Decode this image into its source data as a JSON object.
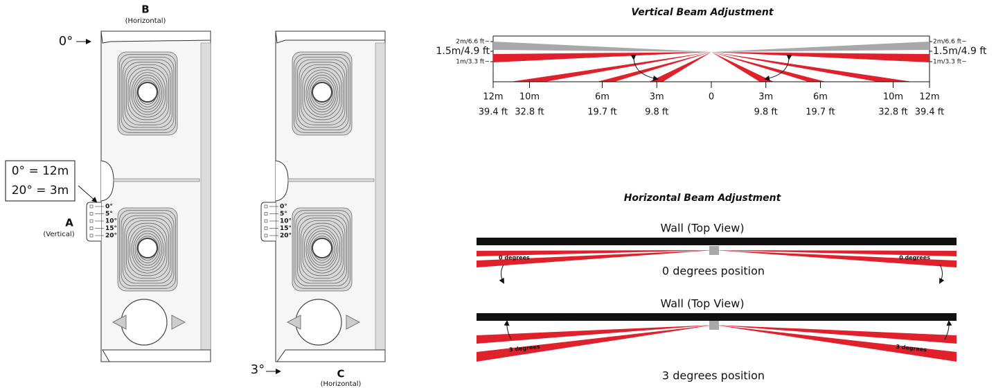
{
  "device_a": {
    "label": "B",
    "label_sub": "(Horizontal)",
    "angle": "0°",
    "callout": [
      "0° = 12m",
      "20° = 3m"
    ],
    "side_label": "A",
    "side_label_sub": "(Vertical)",
    "scale": [
      "0°",
      "5°",
      "10°",
      "15°",
      "20°"
    ]
  },
  "device_c": {
    "angle": "3°",
    "label": "C",
    "label_sub": "(Horizontal)",
    "scale": [
      "0°",
      "5°",
      "10°",
      "15°",
      "20°"
    ]
  },
  "vertical": {
    "title": "Vertical Beam Adjustment",
    "left_heights": [
      "2m/6.6 ft~",
      "1.5m/4.9 ft",
      "1m/3.3 ft~"
    ],
    "right_heights": [
      "2m/6.6 ft~",
      "1.5m/4.9 ft",
      "1m/3.3 ft~"
    ],
    "distances": [
      {
        "m": "12m",
        "ft": "39.4 ft"
      },
      {
        "m": "10m",
        "ft": "32.8 ft"
      },
      {
        "m": "6m",
        "ft": "19.7 ft"
      },
      {
        "m": "3m",
        "ft": "9.8 ft"
      },
      {
        "m": "0"
      },
      {
        "m": "3m",
        "ft": "9.8 ft"
      },
      {
        "m": "6m",
        "ft": "19.7 ft"
      },
      {
        "m": "10m",
        "ft": "32.8 ft"
      },
      {
        "m": "12m",
        "ft": "39.4 ft"
      }
    ]
  },
  "horizontal": {
    "title": "Horizontal Beam Adjustment",
    "panels": [
      {
        "wall": "Wall (Top View)",
        "left_label": "0 degrees",
        "right_label": "0 degrees",
        "caption": "0 degrees position"
      },
      {
        "wall": "Wall (Top View)",
        "left_label": "3 degrees",
        "right_label": "3 degrees",
        "caption": "3 degrees position"
      }
    ]
  }
}
